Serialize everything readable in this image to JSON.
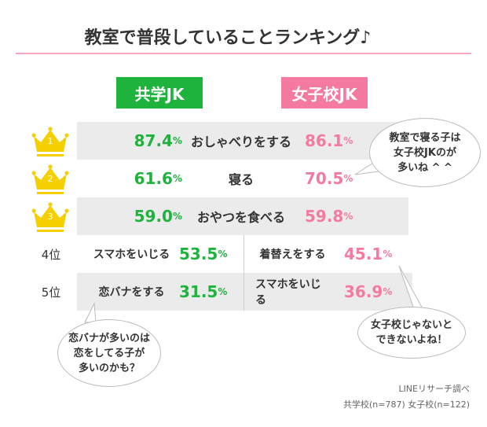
{
  "title": "教室で普段していることランキング♪",
  "colors": {
    "coed": "#1db33c",
    "girls": "#f47aa0",
    "row": "#ebebeb",
    "crown": "#f5cf00"
  },
  "chart_data": {
    "type": "table",
    "title": "教室で普段していることランキング♪",
    "series_labels": {
      "coed": "共学JK",
      "girls": "女子校JK"
    },
    "percent_sign": "%",
    "top3": [
      {
        "rank": "1",
        "label": "おしゃべりをする",
        "coed": "87.4",
        "girls": "86.1"
      },
      {
        "rank": "2",
        "label": "寝る",
        "coed": "61.6",
        "girls": "70.5"
      },
      {
        "rank": "3",
        "label": "おやつを食べる",
        "coed": "59.0",
        "girls": "59.8"
      }
    ],
    "lower": [
      {
        "rank": "4位",
        "coed_label": "スマホをいじる",
        "coed": "53.5",
        "girls_label": "着替えをする",
        "girls": "45.1"
      },
      {
        "rank": "5位",
        "coed_label": "恋バナをする",
        "coed": "31.5",
        "girls_label": "スマホをいじる",
        "girls": "36.9"
      }
    ]
  },
  "bubbles": {
    "b1": [
      "教室で寝る子は",
      "女子校JKのが",
      "多いね ^ ^"
    ],
    "b2": [
      "女子校じゃないと",
      "できないよね！"
    ],
    "b3": [
      "恋バナが多いのは",
      "恋をしてる子が",
      "多いのかも？"
    ]
  },
  "footer": {
    "source": "LINEリサーチ調べ",
    "sample": "共学校(n=787) 女子校(n=122)"
  }
}
